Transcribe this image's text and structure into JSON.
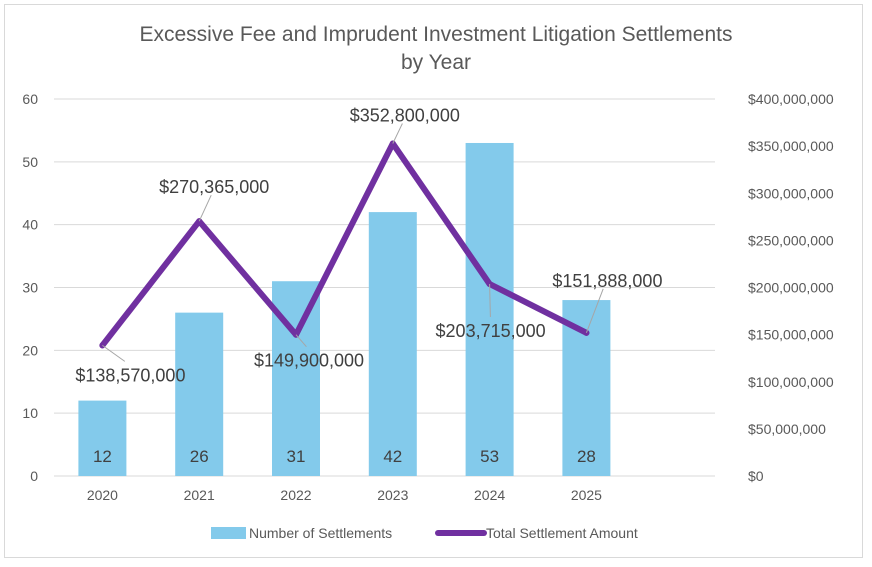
{
  "chart_data": {
    "type": "bar+line",
    "title": "Excessive Fee and Imprudent Investment Litigation Settlements",
    "title_line2": "by Year",
    "categories": [
      "2020",
      "2021",
      "2022",
      "2023",
      "2024",
      "2025"
    ],
    "series": [
      {
        "name": "Number of Settlements",
        "type": "bar",
        "axis": "left",
        "color": "#83CAEB",
        "values": [
          12,
          26,
          31,
          42,
          53,
          28
        ],
        "labels": [
          "12",
          "26",
          "31",
          "42",
          "53",
          "28"
        ]
      },
      {
        "name": "Total Settlement Amount",
        "type": "line",
        "axis": "right",
        "color": "#7030A0",
        "values": [
          138570000,
          270365000,
          149900000,
          352800000,
          203715000,
          151888000
        ],
        "labels": [
          "$138,570,000",
          "$270,365,000",
          "$149,900,000",
          "$352,800,000",
          "$203,715,000",
          "$151,888,000"
        ]
      }
    ],
    "y_left": {
      "range": [
        0,
        60
      ],
      "ticks": [
        "0",
        "10",
        "20",
        "30",
        "40",
        "50",
        "60"
      ]
    },
    "y_right": {
      "range": [
        0,
        400000000
      ],
      "ticks": [
        "$0",
        "$50,000,000",
        "$100,000,000",
        "$150,000,000",
        "$200,000,000",
        "$250,000,000",
        "$300,000,000",
        "$350,000,000",
        "$400,000,000"
      ]
    },
    "grid": true,
    "legend": "bottom"
  }
}
